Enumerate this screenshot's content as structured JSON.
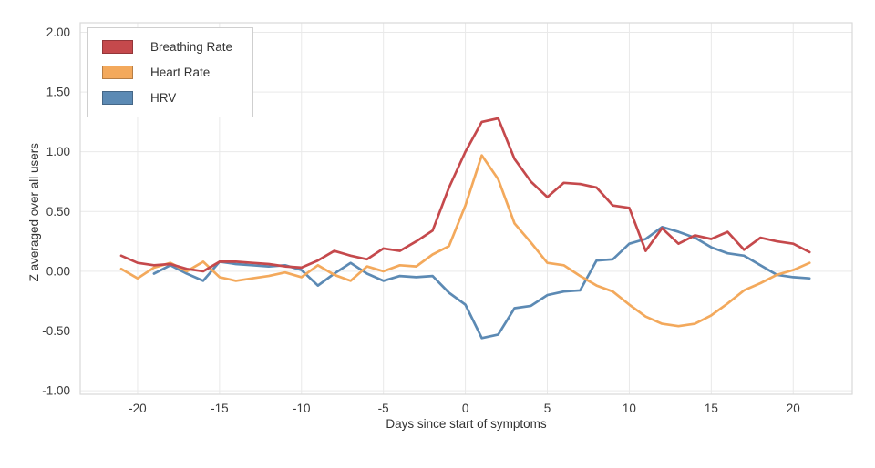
{
  "figure": {
    "background_color": "#ffffff",
    "panel_border_color": "#d9d9d9",
    "grid_color": "#e9e9e9",
    "tick_label_color": "#3a3a3a"
  },
  "chart_data": {
    "type": "line",
    "xlabel": "Days since start of symptoms",
    "ylabel": "Z averaged over all users",
    "grid": true,
    "legend_position": "upper-left",
    "xlim": [
      -23.5,
      23.6
    ],
    "ylim": [
      -1.03,
      2.08
    ],
    "xticks": [
      -20,
      -15,
      -10,
      -5,
      0,
      5,
      10,
      15,
      20
    ],
    "xtick_labels": [
      "-20",
      "-15",
      "-10",
      "-5",
      "0",
      "5",
      "10",
      "15",
      "20"
    ],
    "yticks": [
      2.0,
      1.5,
      1.0,
      0.5,
      0.0,
      -0.5,
      -1.0
    ],
    "ytick_labels": [
      "2.00",
      "1.50",
      "1.00",
      "0.50",
      "0.00",
      "-0.50",
      "-1.00"
    ],
    "x": [
      -21,
      -20,
      -19,
      -18,
      -17,
      -16,
      -15,
      -14,
      -13,
      -12,
      -11,
      -10,
      -9,
      -8,
      -7,
      -6,
      -5,
      -4,
      -3,
      -2,
      -1,
      0,
      1,
      2,
      3,
      4,
      5,
      6,
      7,
      8,
      9,
      10,
      11,
      12,
      13,
      14,
      15,
      16,
      17,
      18,
      19,
      20,
      21
    ],
    "series": [
      {
        "name": "Breathing Rate",
        "color": "#c5494c",
        "values": [
          0.13,
          0.07,
          0.05,
          0.06,
          0.02,
          0.0,
          0.08,
          0.08,
          0.07,
          0.06,
          0.04,
          0.03,
          0.09,
          0.17,
          0.13,
          0.1,
          0.19,
          0.17,
          0.25,
          0.34,
          0.7,
          1.0,
          1.25,
          1.28,
          0.94,
          0.75,
          0.62,
          0.74,
          0.73,
          0.7,
          0.55,
          0.53,
          0.17,
          0.36,
          0.23,
          0.3,
          0.27,
          0.33,
          0.18,
          0.28,
          0.25,
          0.23,
          0.16
        ]
      },
      {
        "name": "Heart Rate",
        "color": "#f3a95c",
        "values": [
          0.02,
          -0.06,
          0.03,
          0.07,
          0.0,
          0.08,
          -0.05,
          -0.08,
          -0.06,
          -0.04,
          -0.01,
          -0.05,
          0.05,
          -0.03,
          -0.08,
          0.04,
          0.0,
          0.05,
          0.04,
          0.14,
          0.21,
          0.55,
          0.97,
          0.77,
          0.4,
          0.24,
          0.07,
          0.05,
          -0.04,
          -0.12,
          -0.17,
          -0.28,
          -0.38,
          -0.44,
          -0.46,
          -0.44,
          -0.37,
          -0.27,
          -0.16,
          -0.1,
          -0.03,
          0.01,
          0.07
        ]
      },
      {
        "name": "HRV",
        "color": "#5c8ab4",
        "values": [
          null,
          null,
          -0.02,
          0.05,
          -0.02,
          -0.08,
          0.08,
          0.06,
          0.05,
          0.04,
          0.05,
          0.01,
          -0.12,
          -0.02,
          0.07,
          -0.02,
          -0.08,
          -0.04,
          -0.05,
          -0.04,
          -0.18,
          -0.28,
          -0.56,
          -0.53,
          -0.31,
          -0.29,
          -0.2,
          -0.17,
          -0.16,
          0.09,
          0.1,
          0.23,
          0.27,
          0.37,
          0.33,
          0.28,
          0.2,
          0.15,
          0.13,
          0.05,
          -0.03,
          -0.05,
          -0.06
        ]
      }
    ]
  }
}
